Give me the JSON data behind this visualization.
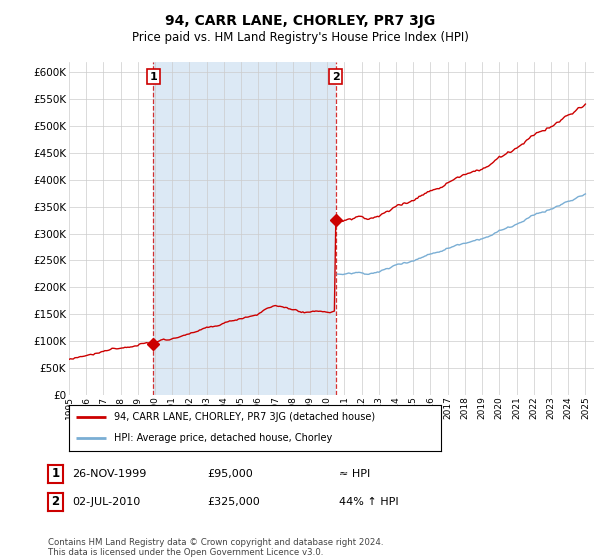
{
  "title": "94, CARR LANE, CHORLEY, PR7 3JG",
  "subtitle": "Price paid vs. HM Land Registry's House Price Index (HPI)",
  "ylim": [
    0,
    620000
  ],
  "yticks": [
    0,
    50000,
    100000,
    150000,
    200000,
    250000,
    300000,
    350000,
    400000,
    450000,
    500000,
    550000,
    600000
  ],
  "sale1_year": 1999.9,
  "sale1_price": 95000,
  "sale2_year": 2010.5,
  "sale2_price": 325000,
  "red_color": "#cc0000",
  "blue_color": "#7aaed4",
  "bg_color": "#ffffff",
  "fill_color": "#dce9f5",
  "grid_color": "#cccccc",
  "legend_line1": "94, CARR LANE, CHORLEY, PR7 3JG (detached house)",
  "legend_line2": "HPI: Average price, detached house, Chorley",
  "annotation1_date": "26-NOV-1999",
  "annotation1_price": "£95,000",
  "annotation1_hpi": "≈ HPI",
  "annotation2_date": "02-JUL-2010",
  "annotation2_price": "£325,000",
  "annotation2_hpi": "44% ↑ HPI",
  "footer": "Contains HM Land Registry data © Crown copyright and database right 2024.\nThis data is licensed under the Open Government Licence v3.0."
}
